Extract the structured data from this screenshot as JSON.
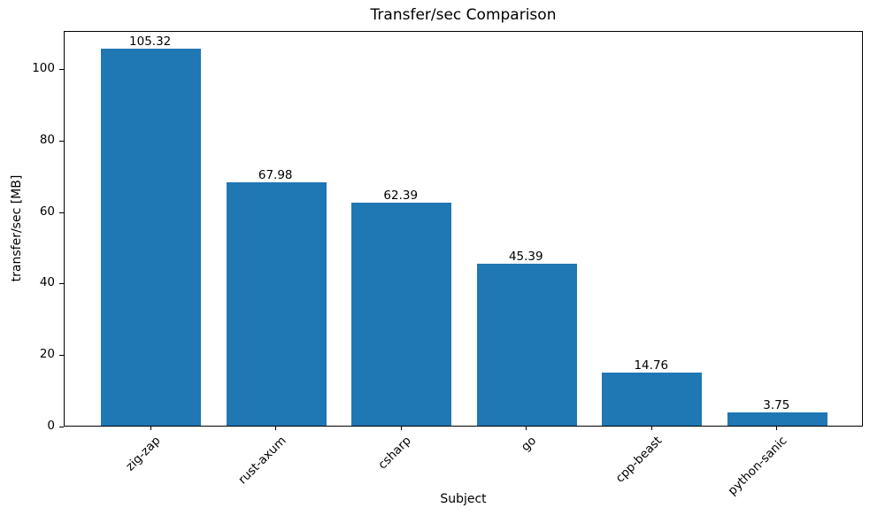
{
  "chart_data": {
    "type": "bar",
    "title": "Transfer/sec Comparison",
    "xlabel": "Subject",
    "ylabel": "transfer/sec [MB]",
    "categories": [
      "zig-zap",
      "rust-axum",
      "csharp",
      "go",
      "cpp-beast",
      "python-sanic"
    ],
    "values": [
      105.32,
      67.98,
      62.39,
      45.39,
      14.76,
      3.75
    ],
    "value_labels": [
      "105.32",
      "67.98",
      "62.39",
      "45.39",
      "14.76",
      "3.75"
    ],
    "bar_color": "#1f77b4",
    "ylim": [
      0,
      110.6
    ],
    "yticks": [
      0,
      20,
      40,
      60,
      80,
      100
    ],
    "xtick_rotation": 45,
    "grid": false,
    "legend_position": "none"
  }
}
